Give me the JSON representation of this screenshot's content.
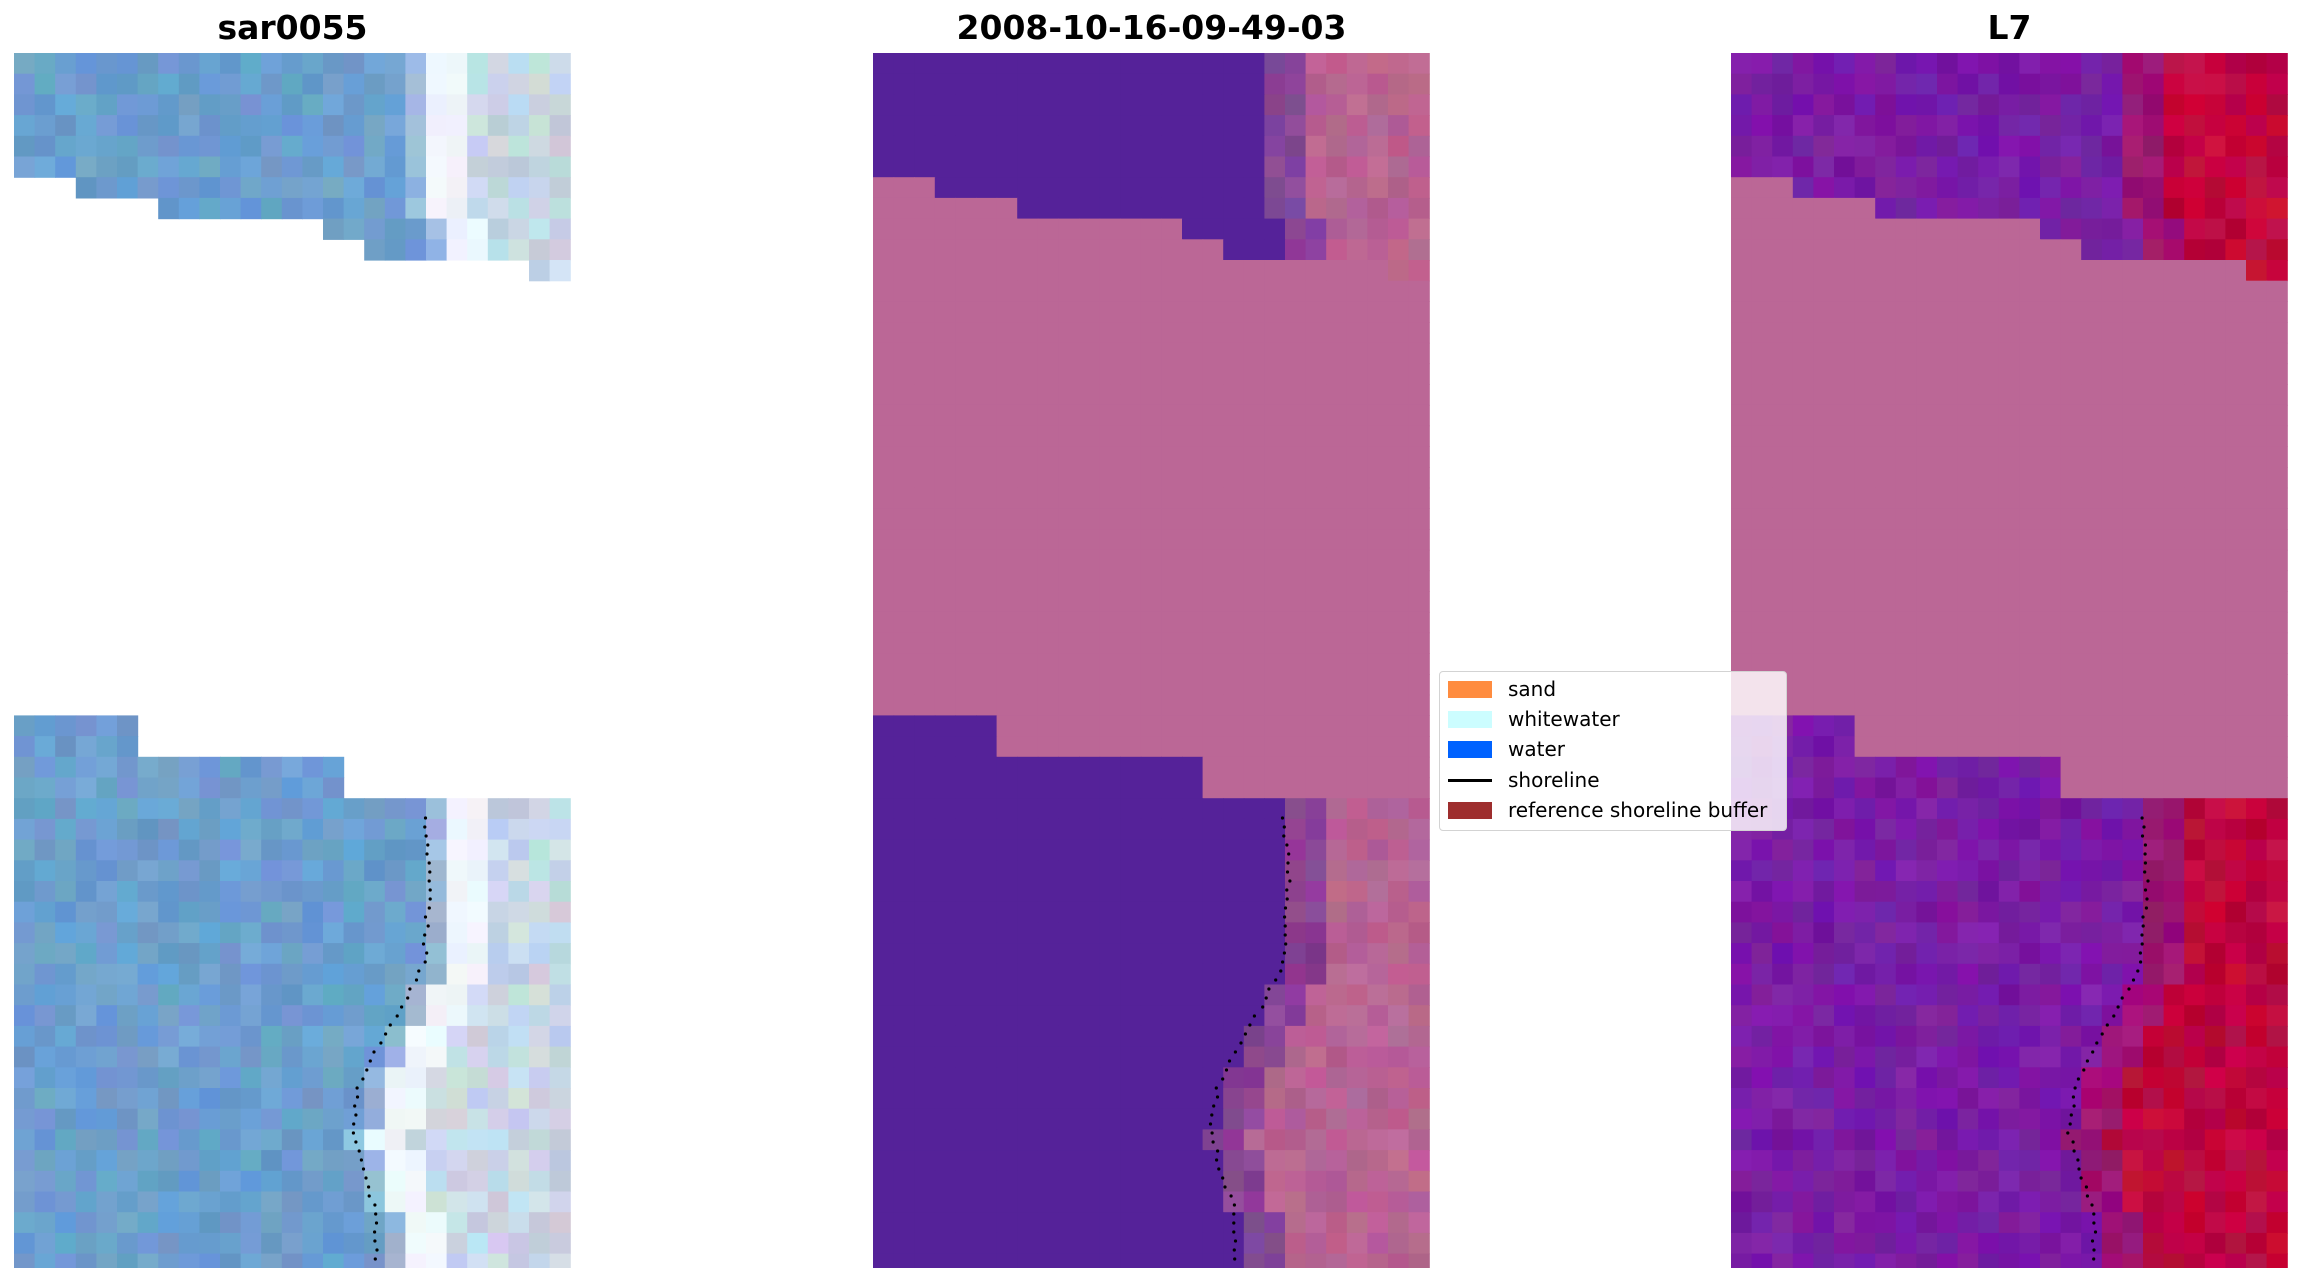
{
  "panels": [
    {
      "title": "sar0055"
    },
    {
      "title": "2008-10-16-09-49-03"
    },
    {
      "title": "L7"
    }
  ],
  "legend": {
    "items": [
      {
        "label": "sand",
        "kind": "patch",
        "color": "#ff8c3f"
      },
      {
        "label": "whitewater",
        "kind": "patch",
        "color": "#ccfdff"
      },
      {
        "label": "water",
        "kind": "patch",
        "color": "#0062ff"
      },
      {
        "label": "shoreline",
        "kind": "line",
        "color": "#000000"
      },
      {
        "label": "reference shoreline buffer",
        "kind": "patch",
        "color": "#9e2e2e"
      }
    ]
  },
  "colors": {
    "rgb_water": "#6c9fce",
    "rgb_surf": "#c8d6e6",
    "class_water": "#552299",
    "class_land": "#b86493",
    "nodata_band": "#bb6796",
    "ndwi_water": "#7a1ca5",
    "ndwi_land": "#c0063d",
    "shoreline_dots": "#000000"
  }
}
